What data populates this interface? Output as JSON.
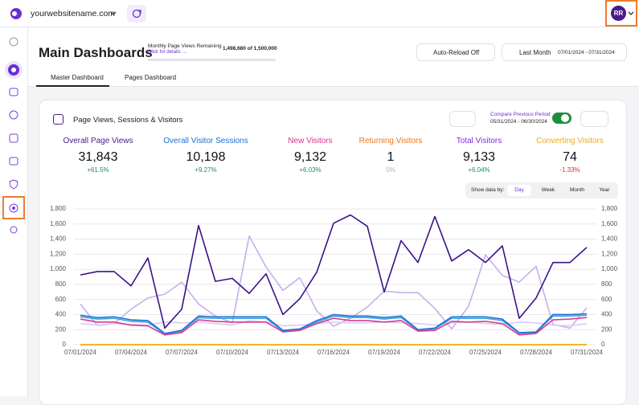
{
  "topbar": {
    "site": "yourwebsitename.com",
    "avatar": "RR"
  },
  "header": {
    "title": "Main Dashboards",
    "quota_label": "Monthly Page Views Remaining",
    "quota_link": "Click for details →",
    "quota_value": "1,498,680 of 1,500,000",
    "auto_reload": "Auto-Reload Off",
    "range_label": "Last Month",
    "range_dates": "07/01/2024 - 07/31/2024"
  },
  "tabs": [
    "Master Dashboard",
    "Pages Dashboard"
  ],
  "card": {
    "title": "Page Views, Sessions & Visitors",
    "compare_label": "Compare Previous Period",
    "compare_dates": "05/31/2024 - 06/30/2024",
    "show_by_label": "Show data by:",
    "show_by": [
      "Day",
      "Week",
      "Month",
      "Year"
    ],
    "show_by_active": 0,
    "metrics": [
      {
        "label": "Overall Page Views",
        "value": "31,843",
        "change": "+61.5%",
        "color": "#4b1a8a",
        "change_color": "#1e8e4e"
      },
      {
        "label": "Overall Visitor Sessions",
        "value": "10,198",
        "change": "+9.27%",
        "color": "#1f6fd1",
        "change_color": "#1e8e4e"
      },
      {
        "label": "New Visitors",
        "value": "9,132",
        "change": "+6.03%",
        "color": "#d6348f",
        "change_color": "#1e8e4e"
      },
      {
        "label": "Returning Visitors",
        "value": "1",
        "change": "0%",
        "color": "#e8761d",
        "change_color": "#b0b0b8"
      },
      {
        "label": "Total Visitors",
        "value": "9,133",
        "change": "+6.04%",
        "color": "#7f2fd4",
        "change_color": "#1e8e4e"
      },
      {
        "label": "Converting Visitors",
        "value": "74",
        "change": "-1.33%",
        "color": "#f0a818",
        "change_color": "#d93025"
      }
    ]
  },
  "chart_data": {
    "type": "line",
    "categories": [
      "07/01/2024",
      null,
      null,
      "07/04/2024",
      null,
      null,
      "07/07/2024",
      null,
      null,
      "07/10/2024",
      null,
      null,
      "07/13/2024",
      null,
      null,
      "07/16/2024",
      null,
      null,
      "07/19/2024",
      null,
      null,
      "07/22/2024",
      null,
      null,
      "07/25/2024",
      null,
      null,
      "07/28/2024",
      null,
      null,
      "07/31/2024"
    ],
    "ylim": [
      0,
      1800
    ],
    "yticks": [
      0,
      200,
      400,
      600,
      800,
      {
        "value": 1000,
        "label": "1,000"
      },
      {
        "value": 1200,
        "label": "1,200"
      },
      {
        "value": 1400,
        "label": "1,400"
      },
      {
        "value": 1600,
        "label": "1,600"
      },
      {
        "value": 1800,
        "label": "1,800"
      }
    ],
    "grid": true,
    "series": [
      {
        "color": "#c7b0ea",
        "values": [
          540,
          255,
          280,
          470,
          620,
          670,
          830,
          540,
          380,
          290,
          1440,
          1030,
          720,
          890,
          450,
          245,
          350,
          500,
          710,
          690,
          690,
          480,
          210,
          510,
          1190,
          920,
          830,
          1040,
          270,
          220,
          490
        ]
      },
      {
        "color": "#d9ccf1",
        "values": [
          280,
          260,
          280,
          270,
          260,
          300,
          290,
          300,
          280,
          260,
          320,
          300,
          250,
          260,
          280,
          300,
          290,
          290,
          300,
          290,
          280,
          260,
          290,
          300,
          280,
          270,
          300,
          290,
          260,
          250,
          280
        ]
      },
      {
        "name": "Returning Visitors",
        "color": "#ee7d26",
        "values": [
          0,
          0,
          0,
          0,
          0,
          0,
          0,
          0,
          0,
          0,
          0,
          0,
          0,
          0,
          0,
          1,
          0,
          0,
          0,
          0,
          0,
          0,
          0,
          0,
          0,
          0,
          0,
          0,
          0,
          0,
          0
        ]
      },
      {
        "name": "Converting Visitors",
        "color": "#f2b31c",
        "values": [
          3,
          3,
          3,
          3,
          3,
          1,
          3,
          3,
          3,
          2,
          3,
          2,
          1,
          1,
          2,
          3,
          3,
          3,
          2,
          3,
          1,
          2,
          3,
          3,
          2,
          2,
          1,
          1,
          3,
          3,
          3
        ]
      },
      {
        "name": "Total Visitors",
        "color": "#3aa5e0",
        "values": [
          370,
          340,
          350,
          310,
          300,
          140,
          180,
          360,
          350,
          350,
          350,
          350,
          180,
          200,
          300,
          380,
          360,
          360,
          340,
          360,
          190,
          210,
          350,
          350,
          350,
          320,
          150,
          160,
          380,
          380,
          390
        ]
      },
      {
        "name": "New Visitors",
        "color": "#d93a8f",
        "values": [
          340,
          300,
          300,
          260,
          250,
          130,
          160,
          330,
          310,
          300,
          300,
          300,
          170,
          190,
          280,
          350,
          320,
          320,
          300,
          320,
          180,
          190,
          310,
          300,
          310,
          280,
          130,
          150,
          330,
          340,
          360
        ]
      },
      {
        "name": "Overall Visitor Sessions",
        "color": "#2470d6",
        "values": [
          390,
          360,
          370,
          330,
          320,
          150,
          190,
          380,
          370,
          370,
          370,
          370,
          190,
          210,
          320,
          400,
          380,
          380,
          360,
          380,
          200,
          220,
          370,
          370,
          370,
          340,
          160,
          170,
          400,
          400,
          410
        ]
      },
      {
        "name": "Overall Page Views",
        "color": "#3b1187",
        "values": [
          925,
          970,
          970,
          780,
          1150,
          220,
          470,
          1580,
          840,
          880,
          680,
          940,
          400,
          610,
          960,
          1610,
          1720,
          1570,
          700,
          1380,
          1090,
          1700,
          1110,
          1260,
          1090,
          1310,
          350,
          620,
          1090,
          1090,
          1290
        ]
      }
    ]
  }
}
